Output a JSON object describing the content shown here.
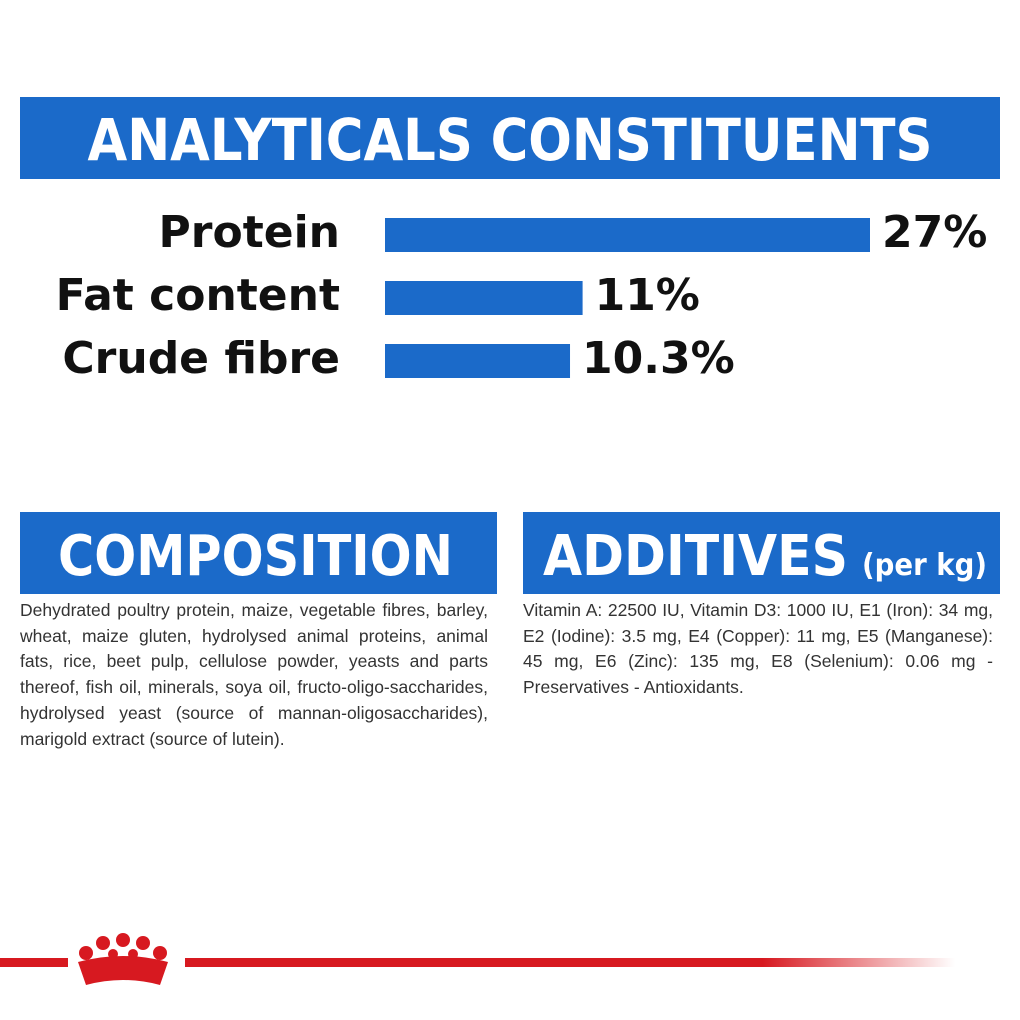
{
  "analyticals": {
    "title": "ANALYTICALS CONSTITUENTS"
  },
  "chart_data": {
    "type": "bar",
    "orientation": "horizontal",
    "categories": [
      "Protein",
      "Fat content",
      "Crude fibre"
    ],
    "values": [
      27,
      11,
      10.3
    ],
    "value_labels": [
      "27%",
      "11%",
      "10.3%"
    ],
    "color": "#1b6ac9"
  },
  "composition": {
    "title": "COMPOSITION",
    "text": "Dehydrated poultry protein, maize, vegetable fibres, barley, wheat, maize gluten, hydrolysed animal proteins, animal fats, rice, beet pulp, cellulose powder, yeasts and parts thereof, fish oil, minerals, soya oil, fructo-oligo-saccharides, hydrolysed yeast (source of mannan-oligosaccharides), marigold extract (source of lutein)."
  },
  "additives": {
    "title": "ADDITIVES",
    "unit": "(per kg)",
    "text": "Vitamin A: 22500 IU, Vitamin D3: 1000 IU, E1 (Iron): 34 mg, E2 (Iodine): 3.5 mg, E4 (Copper): 11 mg, E5 (Manganese): 45 mg, E6 (Zinc): 135 mg, E8 (Selenium): 0.06 mg - Preservatives - Antioxidants."
  }
}
